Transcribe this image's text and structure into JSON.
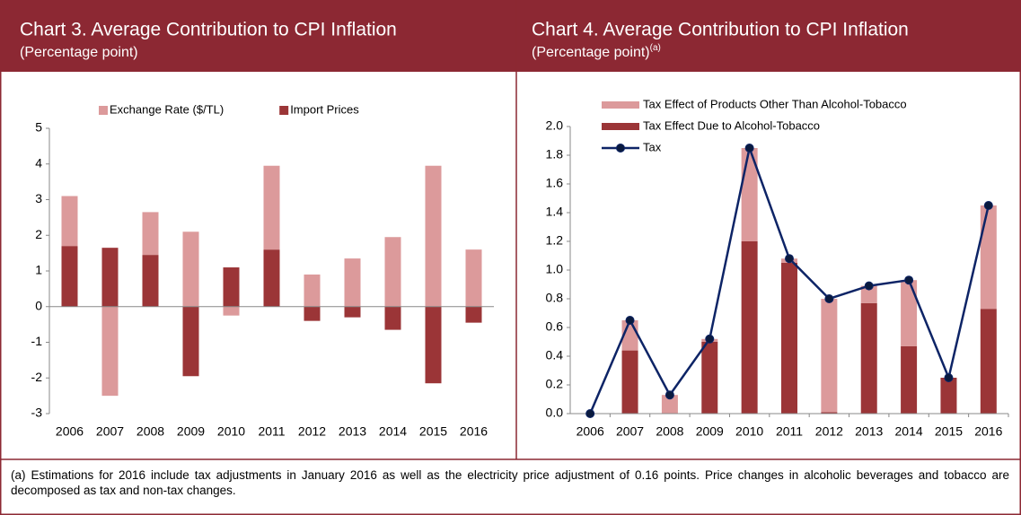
{
  "chart_data": [
    {
      "type": "bar",
      "stacked": true,
      "legend_layout": "horizontal",
      "title": "Chart 3. Average Contribution to CPI Inflation",
      "subtitle": "(Percentage point)",
      "categories": [
        "2006",
        "2007",
        "2008",
        "2009",
        "2010",
        "2011",
        "2012",
        "2013",
        "2014",
        "2015",
        "2016"
      ],
      "series": [
        {
          "name": "Import Prices",
          "type": "bar",
          "color": "#9b3537",
          "values": [
            1.7,
            1.65,
            1.45,
            -1.95,
            1.1,
            1.6,
            -0.4,
            -0.3,
            -0.65,
            -2.15,
            -0.45
          ]
        },
        {
          "name": "Exchange Rate ($/TL)",
          "type": "bar",
          "color": "#dc9a9b",
          "values": [
            1.4,
            -2.5,
            1.2,
            2.1,
            -0.25,
            2.35,
            0.9,
            1.35,
            1.95,
            3.95,
            1.6
          ]
        }
      ],
      "legend_order": [
        1,
        0
      ],
      "ylim": [
        -3,
        5
      ],
      "yticks": [
        -3,
        -2,
        -1,
        0,
        1,
        2,
        3,
        4,
        5
      ],
      "grid": false
    },
    {
      "type": "bar",
      "stacked": true,
      "legend_layout": "vertical",
      "title": "Chart 4. Average Contribution to CPI Inflation",
      "subtitle": "(Percentage point)",
      "subtitle_note": "(a)",
      "categories": [
        "2006",
        "2007",
        "2008",
        "2009",
        "2010",
        "2011",
        "2012",
        "2013",
        "2014",
        "2015",
        "2016"
      ],
      "series": [
        {
          "name": "Tax Effect Due to Alcohol-Tobacco",
          "type": "bar",
          "color": "#9b3537",
          "values": [
            0,
            0.44,
            0,
            0.5,
            1.2,
            1.05,
            0.01,
            0.77,
            0.47,
            0.25,
            0.73
          ]
        },
        {
          "name": "Tax Effect of Products Other Than Alcohol-Tobacco",
          "type": "bar",
          "color": "#dc9a9b",
          "values": [
            0,
            0.21,
            0.13,
            0.02,
            0.65,
            0.03,
            0.79,
            0.12,
            0.46,
            0,
            0.72
          ]
        },
        {
          "name": "Tax",
          "type": "line",
          "color": "#0d2466",
          "values": [
            0,
            0.65,
            0.13,
            0.52,
            1.85,
            1.08,
            0.8,
            0.89,
            0.93,
            0.25,
            1.45
          ]
        }
      ],
      "legend_order": [
        1,
        0,
        2
      ],
      "ylim": [
        0,
        2
      ],
      "yticks": [
        {
          "value": 0,
          "label": "0.0"
        },
        0.2,
        0.4,
        0.6,
        0.8,
        {
          "value": 1,
          "label": "1.0"
        },
        1.2,
        1.4,
        1.6,
        1.8,
        {
          "value": 2,
          "label": "2.0"
        }
      ],
      "grid": false
    }
  ],
  "footnote": "(a) Estimations for 2016 include tax adjustments in January 2016 as well as the electricity price adjustment of 0.16 points. Price changes in alcoholic beverages and tobacco are decomposed as tax and non-tax changes."
}
